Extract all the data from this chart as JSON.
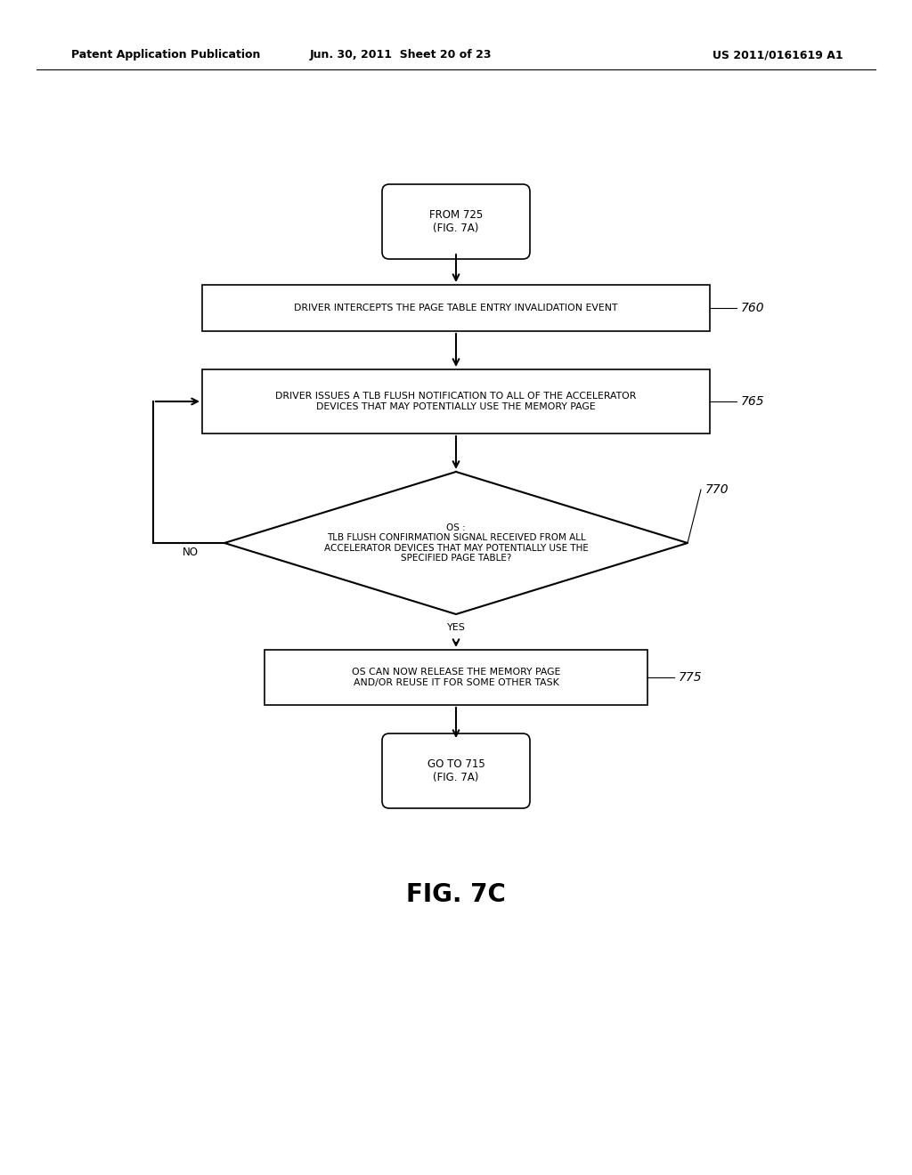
{
  "bg_color": "#ffffff",
  "header_left": "Patent Application Publication",
  "header_center": "Jun. 30, 2011  Sheet 20 of 23",
  "header_right": "US 2011/0161619 A1",
  "figure_label": "FIG. 7C",
  "start_text": "FROM 725\n(FIG. 7A)",
  "box760_text": "DRIVER INTERCEPTS THE PAGE TABLE ENTRY INVALIDATION EVENT",
  "box760_label": "760",
  "box765_text": "DRIVER ISSUES A TLB FLUSH NOTIFICATION TO ALL OF THE ACCELERATOR\nDEVICES THAT MAY POTENTIALLY USE THE MEMORY PAGE",
  "box765_label": "765",
  "diamond770_text": "OS :\nTLB FLUSH CONFIRMATION SIGNAL RECEIVED FROM ALL\nACCELERATOR DEVICES THAT MAY POTENTIALLY USE THE\nSPECIFIED PAGE TABLE?",
  "diamond770_label": "770",
  "box775_text": "OS CAN NOW RELEASE THE MEMORY PAGE\nAND/OR REUSE IT FOR SOME OTHER TASK",
  "box775_label": "775",
  "end_text": "GO TO 715\n(FIG. 7A)"
}
